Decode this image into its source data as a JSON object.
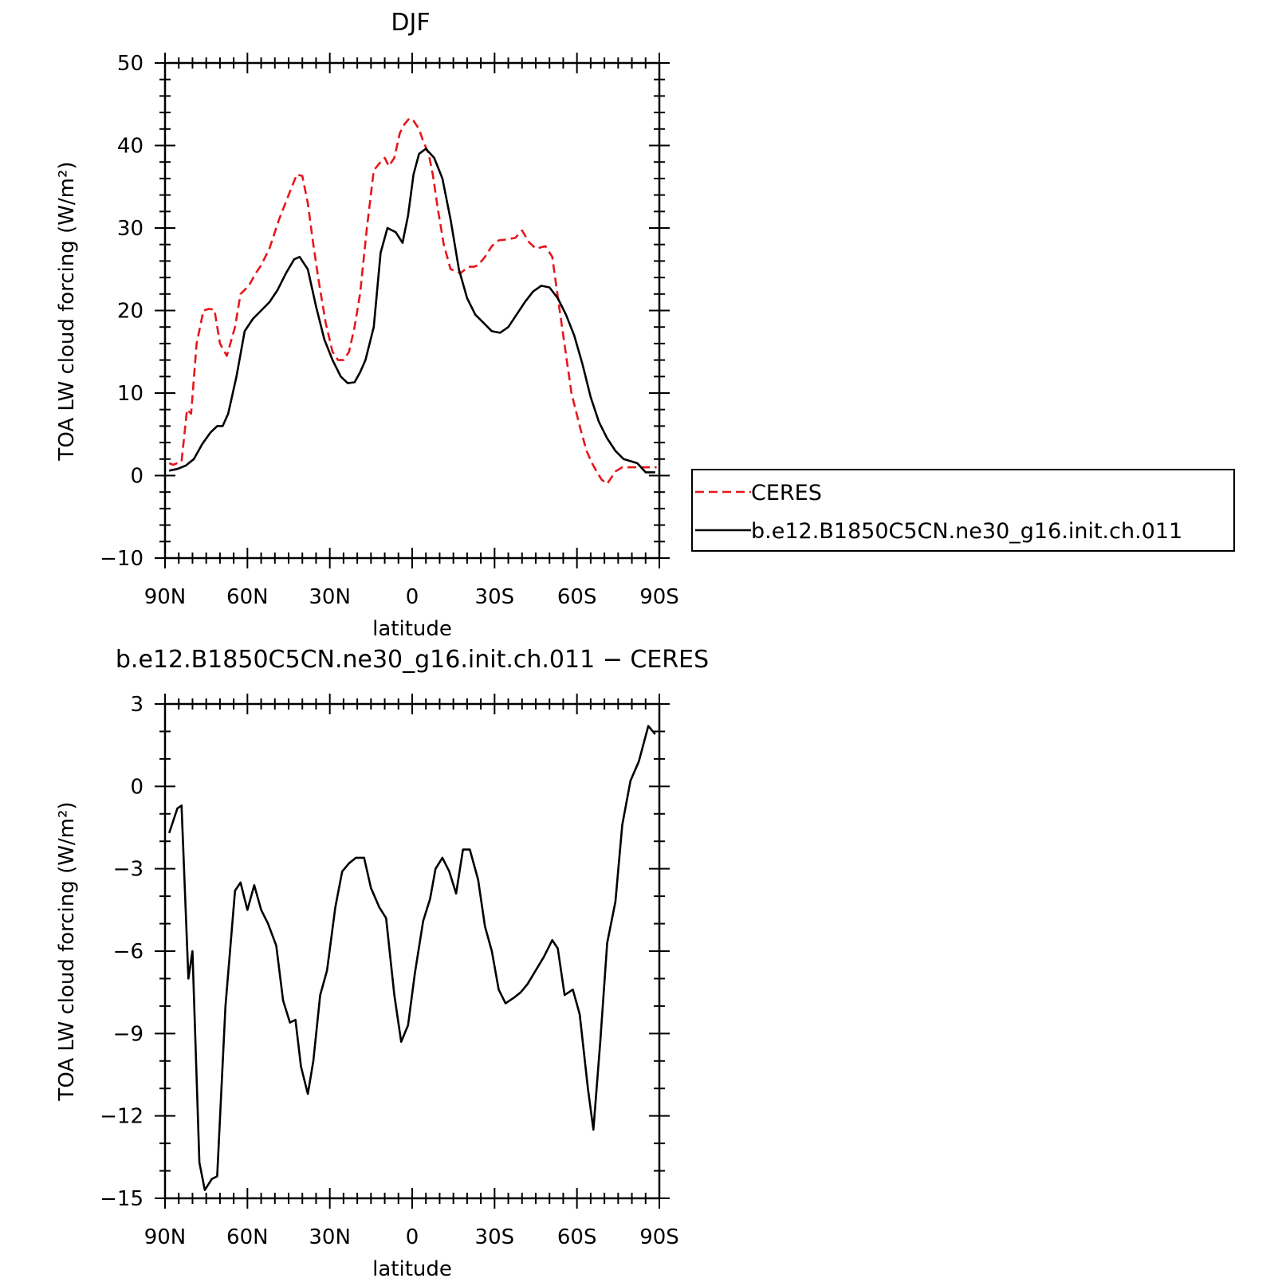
{
  "colors": {
    "ceres": "#e8161b",
    "model": "#000000"
  },
  "x_tick_labels": [
    "90N",
    "60N",
    "30N",
    "0",
    "30S",
    "60S",
    "90S"
  ],
  "chart_data": [
    {
      "type": "line",
      "title": "DJF",
      "xlabel": "latitude",
      "ylabel": "TOA LW cloud forcing (W/m²)",
      "xlim": [
        90,
        -90
      ],
      "ylim": [
        -10,
        50
      ],
      "yticks": [
        -10,
        0,
        10,
        20,
        30,
        40,
        50
      ],
      "ytick_labels": [
        "−10",
        "0",
        "10",
        "20",
        "30",
        "40",
        "50"
      ],
      "legend": {
        "position": "right"
      },
      "series": [
        {
          "name": "CERES",
          "style": "dashed",
          "x": [
            88.5,
            87,
            84,
            82,
            80.5,
            78.5,
            76,
            74,
            72,
            70,
            67.5,
            64.5,
            62.5,
            59.5,
            57,
            55,
            52,
            48.5,
            45,
            42,
            40,
            38,
            36,
            34,
            31.5,
            29,
            27,
            25,
            23,
            21,
            19,
            16.5,
            14,
            11.5,
            10,
            8.5,
            6.5,
            4.5,
            3,
            1,
            -0.5,
            -2.5,
            -4,
            -6,
            -7.5,
            -9.5,
            -11.5,
            -14,
            -16,
            -17.5,
            -20.5,
            -22.5,
            -24,
            -26.5,
            -29,
            -31.5,
            -34,
            -37.5,
            -40,
            -42.5,
            -45,
            -48.5,
            -51,
            -53.5,
            -56.5,
            -58,
            -61,
            -63.5,
            -65.5,
            -67.5,
            -69,
            -71,
            -74,
            -76.5,
            -78,
            -80.5,
            -84,
            -86.5,
            -89
          ],
          "values": [
            1.5,
            1.3,
            1.7,
            8,
            7.5,
            16,
            20,
            20.2,
            20.1,
            16,
            14.5,
            18,
            22,
            23,
            24.5,
            25.5,
            27.5,
            31,
            34,
            36.5,
            36.3,
            33,
            28,
            23.5,
            18.5,
            15,
            14,
            14,
            15,
            18,
            22,
            30,
            37,
            38,
            38.5,
            37.5,
            38.5,
            41.5,
            42.5,
            43.3,
            43,
            42,
            40.5,
            39,
            36.5,
            32,
            28,
            25,
            24.8,
            24.5,
            25.3,
            25.3,
            25.5,
            26.5,
            27.8,
            28.5,
            28.6,
            28.8,
            29.7,
            28.3,
            27.5,
            27.8,
            26.5,
            20.5,
            13.5,
            10,
            6,
            3,
            1.5,
            0.3,
            -0.5,
            -1,
            0.5,
            1,
            1,
            1,
            1,
            1,
            1
          ]
        },
        {
          "name": "b.e12.B1850C5CN.ne30_g16.init.ch.011",
          "style": "solid",
          "x": [
            88.5,
            85.5,
            82.5,
            79.5,
            76.5,
            73.5,
            71,
            69,
            67,
            64,
            61,
            58,
            55,
            52,
            49,
            46,
            43,
            41,
            38,
            35,
            32,
            29,
            26,
            23.5,
            21,
            19,
            17,
            14,
            11.5,
            9,
            6,
            3.5,
            1.5,
            -0.5,
            -2.5,
            -5,
            -8,
            -11,
            -14,
            -17,
            -20,
            -23,
            -26,
            -29,
            -32,
            -35,
            -38,
            -41,
            -44,
            -47,
            -50,
            -53,
            -56,
            -59,
            -62,
            -65,
            -68,
            -71,
            -74,
            -77,
            -79,
            -82,
            -85,
            -88.5
          ],
          "values": [
            0.6,
            0.8,
            1.2,
            2,
            3.8,
            5.2,
            6,
            6,
            7.5,
            12,
            17.5,
            19,
            20,
            21,
            22.5,
            24.5,
            26.2,
            26.5,
            25,
            20.5,
            16.5,
            14,
            12,
            11.2,
            11.3,
            12.5,
            14,
            18,
            27,
            30,
            29.5,
            28.2,
            31.5,
            36.5,
            39,
            39.6,
            38.5,
            36,
            31,
            25,
            21.5,
            19.5,
            18.5,
            17.5,
            17.3,
            18,
            19.5,
            21,
            22.3,
            23,
            22.8,
            21.5,
            19.5,
            17,
            13.5,
            9.5,
            6.5,
            4.5,
            3,
            2,
            1.8,
            1.5,
            0.4,
            0.4
          ]
        }
      ]
    },
    {
      "type": "line",
      "title": "b.e12.B1850C5CN.ne30_g16.init.ch.011  −  CERES",
      "xlabel": "latitude",
      "ylabel": "TOA LW cloud forcing (W/m²)",
      "xlim": [
        90,
        -90
      ],
      "ylim": [
        -15,
        3
      ],
      "yticks": [
        -15,
        -12,
        -9,
        -6,
        -3,
        0,
        3
      ],
      "ytick_labels": [
        "−15",
        "−12",
        "−9",
        "−6",
        "−3",
        "0",
        "3"
      ],
      "series": [
        {
          "style": "solid",
          "x": [
            88.5,
            85.5,
            84,
            81.5,
            80,
            77.5,
            75.5,
            73,
            71,
            68,
            64.5,
            62.5,
            60,
            57.5,
            55,
            52.5,
            49.5,
            47,
            44.5,
            42.5,
            40.5,
            38,
            36,
            33.5,
            31,
            28,
            25.5,
            23,
            20.5,
            17.5,
            15,
            12,
            9.5,
            6.5,
            4,
            1.5,
            -1,
            -4,
            -6.5,
            -8.5,
            -11,
            -13.5,
            -16,
            -18.5,
            -21,
            -24,
            -26.5,
            -29,
            -31.5,
            -34,
            -37,
            -39.5,
            -42,
            -45,
            -48,
            -51,
            -53,
            -55.5,
            -58.5,
            -61,
            -64,
            -66,
            -68.5,
            -71,
            -74,
            -76.5,
            -79.5,
            -82.5,
            -86,
            -88.5
          ],
          "values": [
            -1.7,
            -0.8,
            -0.7,
            -7,
            -6,
            -13.7,
            -14.7,
            -14.3,
            -14.2,
            -8,
            -3.8,
            -3.5,
            -4.5,
            -3.6,
            -4.5,
            -5,
            -5.8,
            -7.8,
            -8.6,
            -8.5,
            -10.2,
            -11.2,
            -10,
            -7.6,
            -6.7,
            -4.4,
            -3.1,
            -2.8,
            -2.6,
            -2.6,
            -3.7,
            -4.4,
            -4.8,
            -7.6,
            -9.3,
            -8.7,
            -6.8,
            -4.9,
            -4.1,
            -3,
            -2.6,
            -3.1,
            -3.9,
            -2.3,
            -2.3,
            -3.4,
            -5.1,
            -6,
            -7.4,
            -7.9,
            -7.7,
            -7.5,
            -7.2,
            -6.7,
            -6.2,
            -5.6,
            -5.9,
            -7.6,
            -7.4,
            -8.3,
            -11,
            -12.5,
            -9.3,
            -5.7,
            -4.2,
            -1.4,
            0.2,
            0.9,
            2.2,
            1.9
          ]
        }
      ]
    }
  ]
}
